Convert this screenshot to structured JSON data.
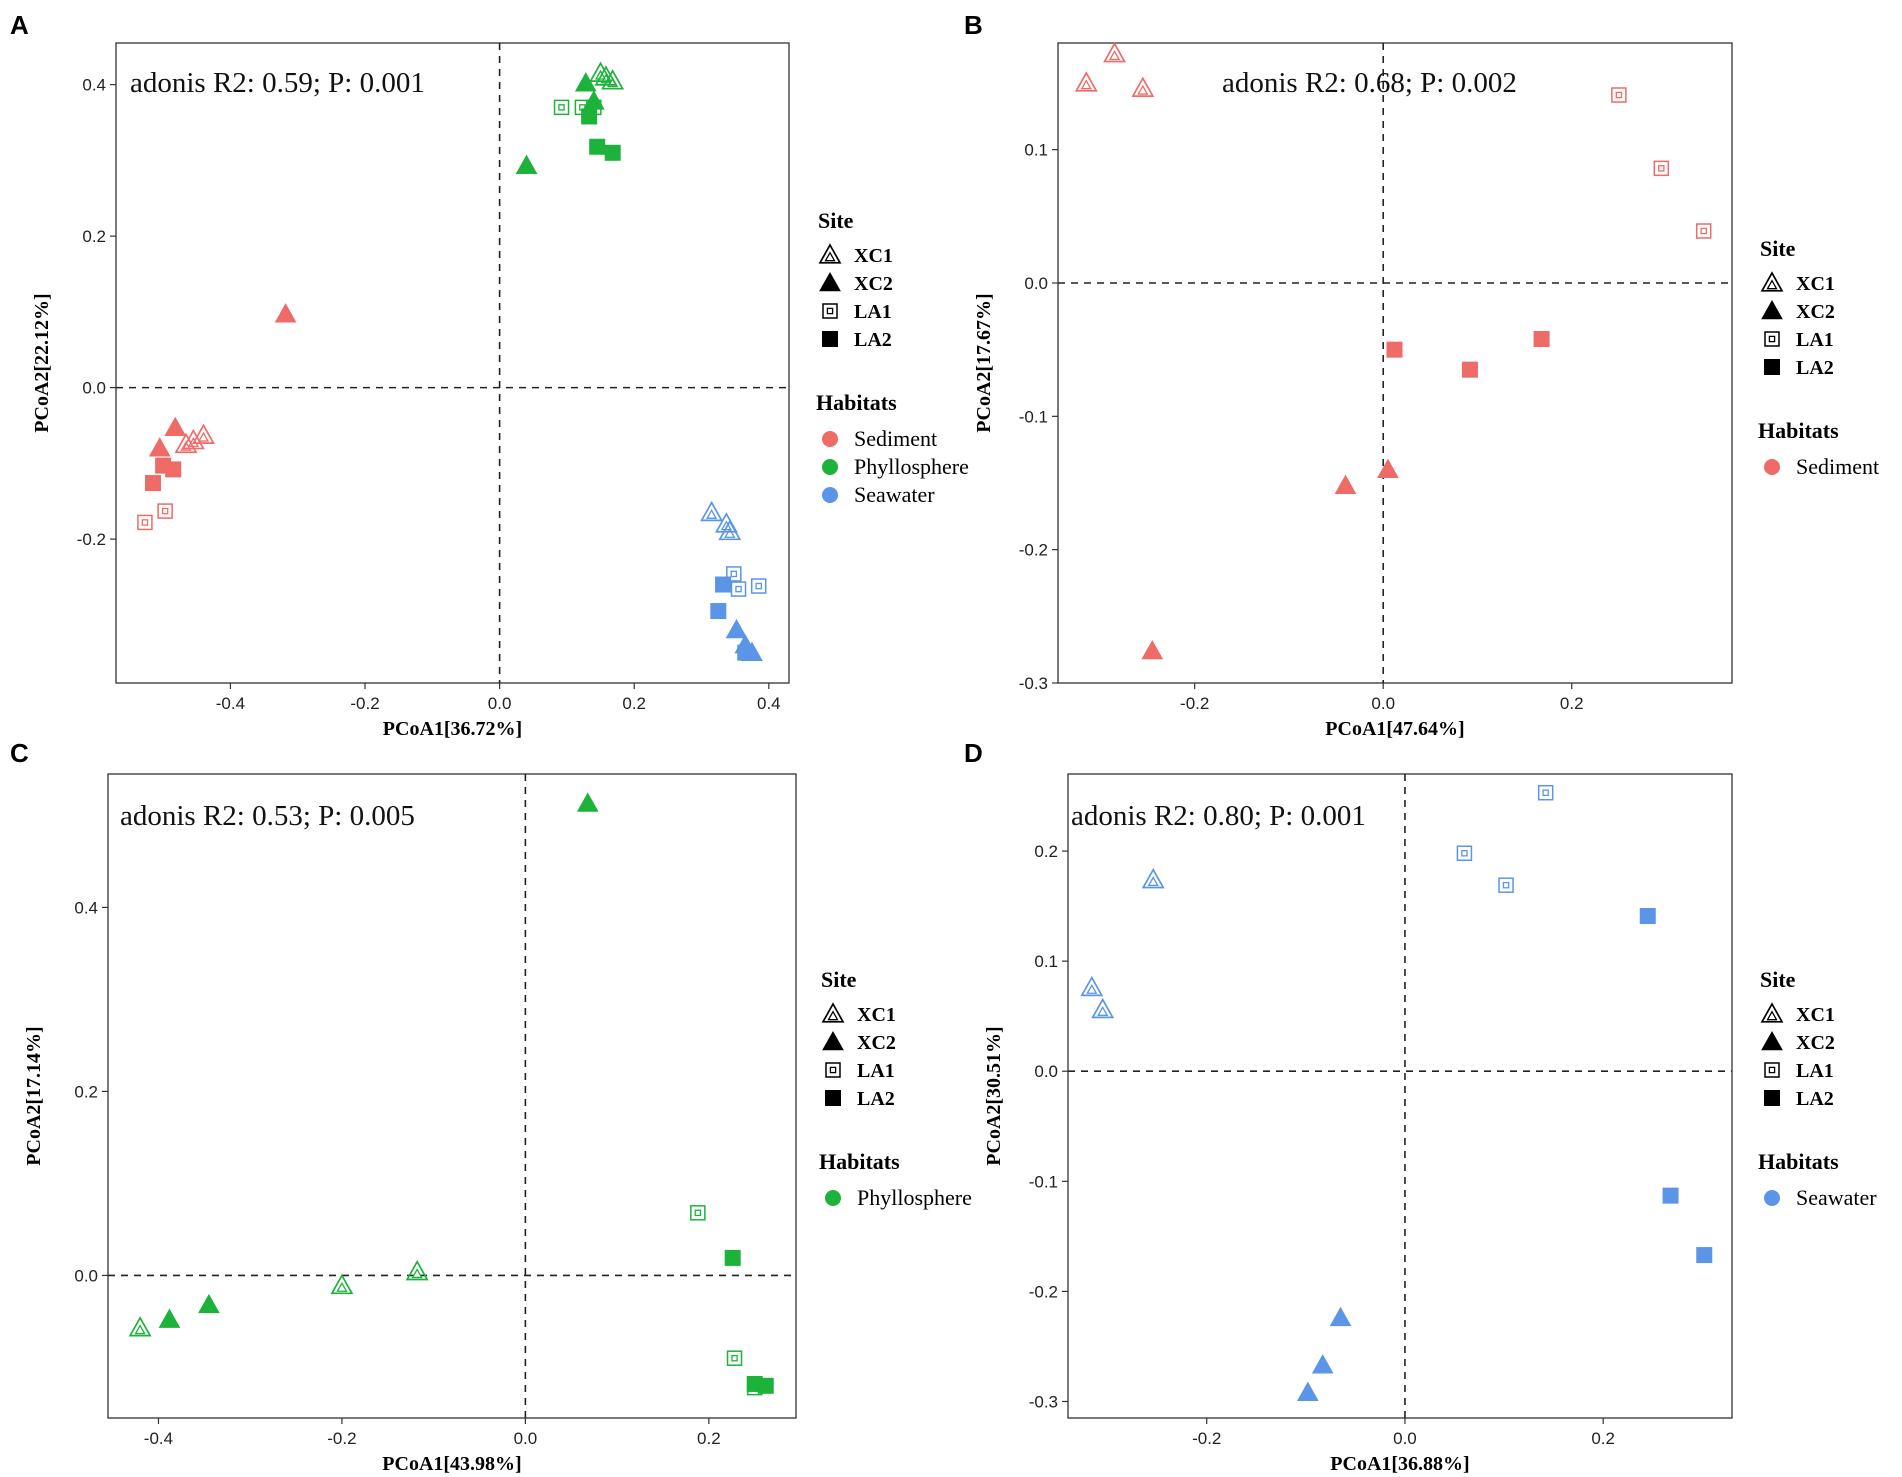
{
  "colors": {
    "Sediment": "#EE6B67",
    "Phyllosphere": "#1DB33A",
    "Seawater": "#5B95E8"
  },
  "legend": {
    "site_title": "Site",
    "habitats_title": "Habitats",
    "site_labels": [
      "XC1",
      "XC2",
      "LA1",
      "LA2"
    ],
    "site_icons": [
      "double-triangle-open-icon",
      "triangle-filled-icon",
      "double-square-open-icon",
      "square-filled-icon"
    ]
  },
  "chart_data": [
    {
      "type": "scatter",
      "panel": "A",
      "annotation": "adonis R2: 0.59; P: 0.001",
      "xlabel": "PCoA1[36.72%]",
      "ylabel": "PCoA2[22.12%]",
      "xlim": [
        -0.57,
        0.43
      ],
      "ylim": [
        -0.39,
        0.455
      ],
      "xticks": [
        "-0.4",
        "-0.2",
        "0.0",
        "0.2",
        "0.4"
      ],
      "yticks": [
        "-0.2",
        "0.0",
        "0.2",
        "0.4"
      ],
      "habitats": [
        "Sediment",
        "Phyllosphere",
        "Seawater"
      ],
      "points": [
        {
          "x": -0.466,
          "y": -0.075,
          "site": "XC1",
          "habitat": "Sediment"
        },
        {
          "x": -0.455,
          "y": -0.07,
          "site": "XC1",
          "habitat": "Sediment"
        },
        {
          "x": -0.44,
          "y": -0.063,
          "site": "XC1",
          "habitat": "Sediment"
        },
        {
          "x": -0.318,
          "y": 0.097,
          "site": "XC2",
          "habitat": "Sediment"
        },
        {
          "x": -0.482,
          "y": -0.053,
          "site": "XC2",
          "habitat": "Sediment"
        },
        {
          "x": -0.505,
          "y": -0.08,
          "site": "XC2",
          "habitat": "Sediment"
        },
        {
          "x": -0.497,
          "y": -0.163,
          "site": "LA1",
          "habitat": "Sediment"
        },
        {
          "x": -0.527,
          "y": -0.178,
          "site": "LA1",
          "habitat": "Sediment"
        },
        {
          "x": -0.5,
          "y": -0.103,
          "site": "LA2",
          "habitat": "Sediment"
        },
        {
          "x": -0.485,
          "y": -0.108,
          "site": "LA2",
          "habitat": "Sediment"
        },
        {
          "x": -0.515,
          "y": -0.126,
          "site": "LA2",
          "habitat": "Sediment"
        },
        {
          "x": 0.15,
          "y": 0.415,
          "site": "XC1",
          "habitat": "Phyllosphere"
        },
        {
          "x": 0.158,
          "y": 0.41,
          "site": "XC1",
          "habitat": "Phyllosphere"
        },
        {
          "x": 0.168,
          "y": 0.405,
          "site": "XC1",
          "habitat": "Phyllosphere"
        },
        {
          "x": 0.128,
          "y": 0.402,
          "site": "XC2",
          "habitat": "Phyllosphere"
        },
        {
          "x": 0.14,
          "y": 0.378,
          "site": "XC2",
          "habitat": "Phyllosphere"
        },
        {
          "x": 0.04,
          "y": 0.293,
          "site": "XC2",
          "habitat": "Phyllosphere"
        },
        {
          "x": 0.092,
          "y": 0.37,
          "site": "LA1",
          "habitat": "Phyllosphere"
        },
        {
          "x": 0.123,
          "y": 0.37,
          "site": "LA1",
          "habitat": "Phyllosphere"
        },
        {
          "x": 0.14,
          "y": 0.37,
          "site": "LA1",
          "habitat": "Phyllosphere"
        },
        {
          "x": 0.133,
          "y": 0.358,
          "site": "LA2",
          "habitat": "Phyllosphere"
        },
        {
          "x": 0.145,
          "y": 0.318,
          "site": "LA2",
          "habitat": "Phyllosphere"
        },
        {
          "x": 0.168,
          "y": 0.31,
          "site": "LA2",
          "habitat": "Phyllosphere"
        },
        {
          "x": 0.315,
          "y": -0.165,
          "site": "XC1",
          "habitat": "Seawater"
        },
        {
          "x": 0.337,
          "y": -0.18,
          "site": "XC1",
          "habitat": "Seawater"
        },
        {
          "x": 0.342,
          "y": -0.19,
          "site": "XC1",
          "habitat": "Seawater"
        },
        {
          "x": 0.352,
          "y": -0.32,
          "site": "XC2",
          "habitat": "Seawater"
        },
        {
          "x": 0.365,
          "y": -0.34,
          "site": "XC2",
          "habitat": "Seawater"
        },
        {
          "x": 0.375,
          "y": -0.35,
          "site": "XC2",
          "habitat": "Seawater"
        },
        {
          "x": 0.348,
          "y": -0.246,
          "site": "LA1",
          "habitat": "Seawater"
        },
        {
          "x": 0.355,
          "y": -0.266,
          "site": "LA1",
          "habitat": "Seawater"
        },
        {
          "x": 0.385,
          "y": -0.262,
          "site": "LA1",
          "habitat": "Seawater"
        },
        {
          "x": 0.332,
          "y": -0.26,
          "site": "LA2",
          "habitat": "Seawater"
        },
        {
          "x": 0.325,
          "y": -0.295,
          "site": "LA2",
          "habitat": "Seawater"
        },
        {
          "x": 0.365,
          "y": -0.35,
          "site": "LA2",
          "habitat": "Seawater"
        }
      ]
    },
    {
      "type": "scatter",
      "panel": "B",
      "annotation": "adonis R2: 0.68; P: 0.002",
      "xlabel": "PCoA1[47.64%]",
      "ylabel": "PCoA2[17.67%]",
      "xlim": [
        -0.345,
        0.37
      ],
      "ylim": [
        -0.3,
        0.18
      ],
      "xticks": [
        "-0.2",
        "0.0",
        "0.2"
      ],
      "yticks": [
        "-0.3",
        "-0.2",
        "-0.1",
        "0.0",
        "0.1"
      ],
      "habitats": [
        "Sediment"
      ],
      "points": [
        {
          "x": -0.315,
          "y": 0.15,
          "site": "XC1",
          "habitat": "Sediment"
        },
        {
          "x": -0.285,
          "y": 0.172,
          "site": "XC1",
          "habitat": "Sediment"
        },
        {
          "x": -0.255,
          "y": 0.146,
          "site": "XC1",
          "habitat": "Sediment"
        },
        {
          "x": -0.245,
          "y": -0.276,
          "site": "XC2",
          "habitat": "Sediment"
        },
        {
          "x": -0.04,
          "y": -0.152,
          "site": "XC2",
          "habitat": "Sediment"
        },
        {
          "x": 0.005,
          "y": -0.14,
          "site": "XC2",
          "habitat": "Sediment"
        },
        {
          "x": 0.25,
          "y": 0.141,
          "site": "LA1",
          "habitat": "Sediment"
        },
        {
          "x": 0.295,
          "y": 0.086,
          "site": "LA1",
          "habitat": "Sediment"
        },
        {
          "x": 0.34,
          "y": 0.039,
          "site": "LA1",
          "habitat": "Sediment"
        },
        {
          "x": 0.012,
          "y": -0.05,
          "site": "LA2",
          "habitat": "Sediment"
        },
        {
          "x": 0.092,
          "y": -0.065,
          "site": "LA2",
          "habitat": "Sediment"
        },
        {
          "x": 0.168,
          "y": -0.042,
          "site": "LA2",
          "habitat": "Sediment"
        }
      ]
    },
    {
      "type": "scatter",
      "panel": "C",
      "annotation": "adonis R2: 0.53; P: 0.005",
      "xlabel": "PCoA1[43.98%]",
      "ylabel": "PCoA2[17.14%]",
      "xlim": [
        -0.455,
        0.295
      ],
      "ylim": [
        -0.155,
        0.545
      ],
      "xticks": [
        "-0.4",
        "-0.2",
        "0.0",
        "0.2"
      ],
      "yticks": [
        "0.0",
        "0.2",
        "0.4"
      ],
      "habitats": [
        "Phyllosphere"
      ],
      "points": [
        {
          "x": -0.42,
          "y": -0.057,
          "site": "XC1",
          "habitat": "Phyllosphere"
        },
        {
          "x": -0.2,
          "y": -0.011,
          "site": "XC1",
          "habitat": "Phyllosphere"
        },
        {
          "x": -0.118,
          "y": 0.004,
          "site": "XC1",
          "habitat": "Phyllosphere"
        },
        {
          "x": -0.388,
          "y": -0.048,
          "site": "XC2",
          "habitat": "Phyllosphere"
        },
        {
          "x": -0.345,
          "y": -0.032,
          "site": "XC2",
          "habitat": "Phyllosphere"
        },
        {
          "x": 0.068,
          "y": 0.513,
          "site": "XC2",
          "habitat": "Phyllosphere"
        },
        {
          "x": 0.188,
          "y": 0.068,
          "site": "LA1",
          "habitat": "Phyllosphere"
        },
        {
          "x": 0.228,
          "y": -0.09,
          "site": "LA1",
          "habitat": "Phyllosphere"
        },
        {
          "x": 0.25,
          "y": -0.122,
          "site": "LA1",
          "habitat": "Phyllosphere"
        },
        {
          "x": 0.226,
          "y": 0.019,
          "site": "LA2",
          "habitat": "Phyllosphere"
        },
        {
          "x": 0.25,
          "y": -0.118,
          "site": "LA2",
          "habitat": "Phyllosphere"
        },
        {
          "x": 0.262,
          "y": -0.12,
          "site": "LA2",
          "habitat": "Phyllosphere"
        }
      ]
    },
    {
      "type": "scatter",
      "panel": "D",
      "annotation": "adonis R2: 0.80; P: 0.001",
      "xlabel": "PCoA1[36.88%]",
      "ylabel": "PCoA2[30.51%]",
      "xlim": [
        -0.34,
        0.33
      ],
      "ylim": [
        -0.315,
        0.27
      ],
      "xticks": [
        "-0.2",
        "0.0",
        "0.2"
      ],
      "yticks": [
        "-0.3",
        "-0.2",
        "-0.1",
        "0.0",
        "0.1",
        "0.2"
      ],
      "habitats": [
        "Seawater"
      ],
      "points": [
        {
          "x": -0.316,
          "y": 0.076,
          "site": "XC1",
          "habitat": "Seawater"
        },
        {
          "x": -0.305,
          "y": 0.056,
          "site": "XC1",
          "habitat": "Seawater"
        },
        {
          "x": -0.254,
          "y": 0.174,
          "site": "XC1",
          "habitat": "Seawater"
        },
        {
          "x": -0.065,
          "y": -0.224,
          "site": "XC2",
          "habitat": "Seawater"
        },
        {
          "x": -0.083,
          "y": -0.267,
          "site": "XC2",
          "habitat": "Seawater"
        },
        {
          "x": -0.098,
          "y": -0.292,
          "site": "XC2",
          "habitat": "Seawater"
        },
        {
          "x": 0.06,
          "y": 0.198,
          "site": "LA1",
          "habitat": "Seawater"
        },
        {
          "x": 0.102,
          "y": 0.169,
          "site": "LA1",
          "habitat": "Seawater"
        },
        {
          "x": 0.142,
          "y": 0.253,
          "site": "LA1",
          "habitat": "Seawater"
        },
        {
          "x": 0.245,
          "y": 0.141,
          "site": "LA2",
          "habitat": "Seawater"
        },
        {
          "x": 0.268,
          "y": -0.113,
          "site": "LA2",
          "habitat": "Seawater"
        },
        {
          "x": 0.302,
          "y": -0.167,
          "site": "LA2",
          "habitat": "Seawater"
        }
      ]
    }
  ]
}
